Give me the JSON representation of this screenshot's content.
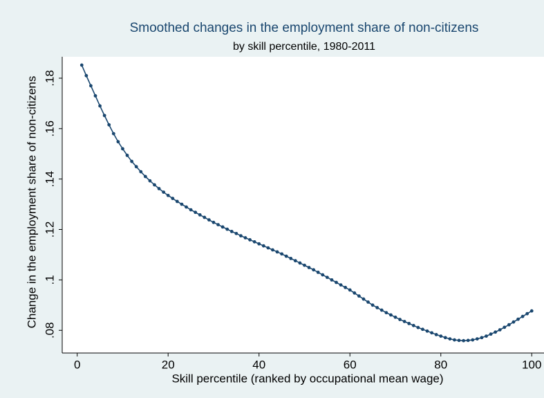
{
  "chart_data": {
    "type": "line",
    "title": "Smoothed changes in the employment share of non-citizens",
    "subtitle": "by skill percentile, 1980-2011",
    "x_label": "Skill percentile (ranked by occupational mean wage)",
    "y_label": "Change in the employment share of non-citizens",
    "color": "#1a476f",
    "markers": true,
    "x": [
      1,
      2,
      3,
      4,
      5,
      6,
      7,
      8,
      9,
      10,
      11,
      12,
      13,
      14,
      15,
      16,
      17,
      18,
      19,
      20,
      21,
      22,
      23,
      24,
      25,
      26,
      27,
      28,
      29,
      30,
      31,
      32,
      33,
      34,
      35,
      36,
      37,
      38,
      39,
      40,
      41,
      42,
      43,
      44,
      45,
      46,
      47,
      48,
      49,
      50,
      51,
      52,
      53,
      54,
      55,
      56,
      57,
      58,
      59,
      60,
      61,
      62,
      63,
      64,
      65,
      66,
      67,
      68,
      69,
      70,
      71,
      72,
      73,
      74,
      75,
      76,
      77,
      78,
      79,
      80,
      81,
      82,
      83,
      84,
      85,
      86,
      87,
      88,
      89,
      90,
      91,
      92,
      93,
      94,
      95,
      96,
      97,
      98,
      99,
      100
    ],
    "values": [
      0.1852,
      0.181,
      0.177,
      0.173,
      0.169,
      0.1652,
      0.1615,
      0.158,
      0.1548,
      0.152,
      0.1494,
      0.147,
      0.1449,
      0.1429,
      0.141,
      0.1393,
      0.1377,
      0.1362,
      0.1348,
      0.1335,
      0.1323,
      0.1311,
      0.13,
      0.1289,
      0.1278,
      0.1268,
      0.1258,
      0.1248,
      0.1238,
      0.1228,
      0.1219,
      0.121,
      0.1201,
      0.1192,
      0.1184,
      0.1175,
      0.1167,
      0.1159,
      0.1151,
      0.1143,
      0.1135,
      0.1127,
      0.1119,
      0.1111,
      0.1103,
      0.1094,
      0.1085,
      0.1076,
      0.1067,
      0.1058,
      0.1049,
      0.104,
      0.103,
      0.102,
      0.101,
      0.1,
      0.099,
      0.098,
      0.097,
      0.096,
      0.0948,
      0.0936,
      0.0924,
      0.0912,
      0.09,
      0.089,
      0.088,
      0.087,
      0.0861,
      0.0852,
      0.0843,
      0.0835,
      0.0827,
      0.0819,
      0.0811,
      0.0804,
      0.0797,
      0.079,
      0.0783,
      0.0777,
      0.0771,
      0.0766,
      0.0762,
      0.076,
      0.0759,
      0.076,
      0.0762,
      0.0766,
      0.0771,
      0.0777,
      0.0785,
      0.0793,
      0.0802,
      0.0812,
      0.0822,
      0.0833,
      0.0844,
      0.0855,
      0.0866,
      0.0877
    ],
    "xlim": [
      -3.3,
      102.7
    ],
    "xticks": [
      0,
      20,
      40,
      60,
      80,
      100
    ],
    "ylim": [
      0.071,
      0.1885
    ],
    "yticks": [
      {
        "value": 0.08,
        "label": ".08"
      },
      {
        "value": 0.1,
        "label": ".1"
      },
      {
        "value": 0.12,
        "label": ".12"
      },
      {
        "value": 0.14,
        "label": ".14"
      },
      {
        "value": 0.16,
        "label": ".16"
      },
      {
        "value": 0.18,
        "label": ".18"
      }
    ]
  }
}
